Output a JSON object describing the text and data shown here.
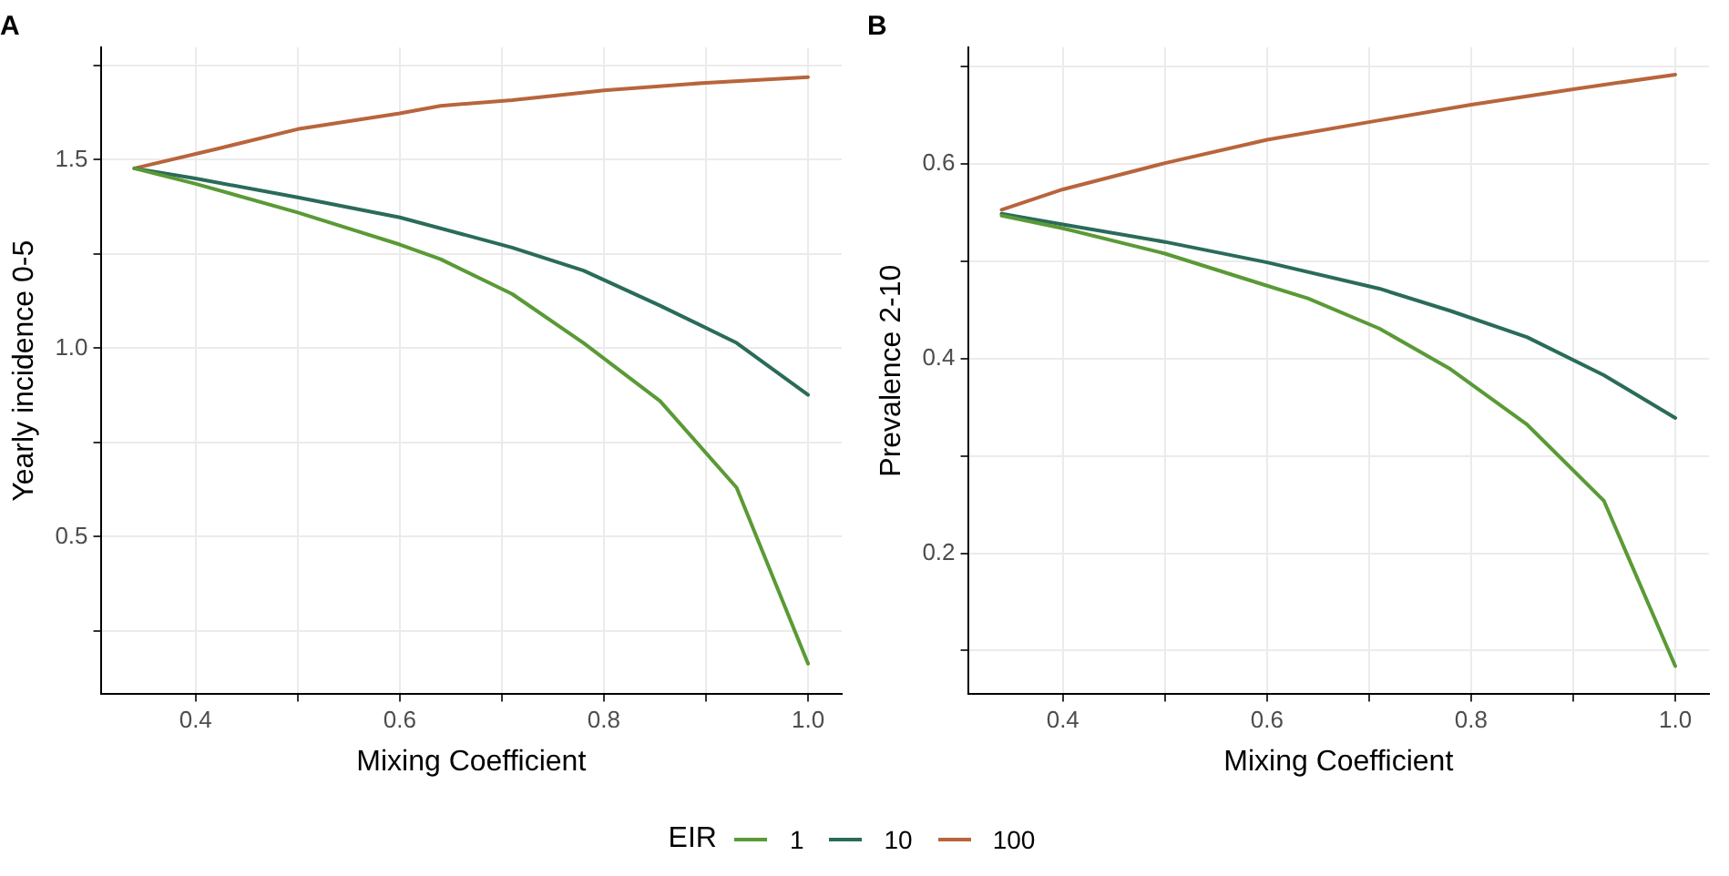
{
  "chart_data": [
    {
      "type": "line",
      "title": "A",
      "xlabel": "Mixing Coefficient",
      "ylabel": "Yearly incidence 0-5",
      "legend_title": "EIR",
      "legend": "bottom",
      "grid": true,
      "marker": "none",
      "line_style": "solid",
      "xlim": [
        0.307,
        1.033
      ],
      "xticks": [
        0.4,
        {
          "value": 0.5,
          "label": null
        },
        0.6,
        {
          "value": 0.7,
          "label": null
        },
        0.8,
        {
          "value": 0.9,
          "label": null
        },
        {
          "value": 1,
          "label": "1.0"
        }
      ],
      "ylim": [
        0.082,
        1.798
      ],
      "yticks": [
        {
          "value": 0.25,
          "label": null
        },
        0.5,
        {
          "value": 0.75,
          "label": null
        },
        {
          "value": 1,
          "label": "1.0"
        },
        {
          "value": 1.25,
          "label": null
        },
        1.5,
        {
          "value": 1.75,
          "label": null
        }
      ],
      "series": [
        {
          "name": "1",
          "color": "#5a9a36",
          "x": [
            0.34,
            0.4,
            0.5,
            0.6,
            0.64,
            0.71,
            0.78,
            0.855,
            0.93,
            1.0
          ],
          "values": [
            1.477,
            1.436,
            1.36,
            1.275,
            1.236,
            1.144,
            1.014,
            0.86,
            0.63,
            0.163
          ]
        },
        {
          "name": "10",
          "color": "#2a6b5a",
          "x": [
            0.34,
            0.4,
            0.5,
            0.6,
            0.71,
            0.78,
            0.855,
            0.93,
            1.0
          ],
          "values": [
            1.477,
            1.45,
            1.4,
            1.347,
            1.267,
            1.206,
            1.113,
            1.014,
            0.876
          ]
        },
        {
          "name": "100",
          "color": "#b8653c",
          "x": [
            0.34,
            0.42,
            0.5,
            0.6,
            0.64,
            0.71,
            0.8,
            0.9,
            1.0
          ],
          "values": [
            1.477,
            1.528,
            1.581,
            1.623,
            1.643,
            1.658,
            1.684,
            1.704,
            1.719
          ]
        }
      ]
    },
    {
      "type": "line",
      "title": "B",
      "xlabel": "Mixing Coefficient",
      "ylabel": "Prevalence 2-10",
      "grid": true,
      "marker": "none",
      "line_style": "solid",
      "xlim": [
        0.307,
        1.033
      ],
      "xticks": [
        0.4,
        {
          "value": 0.5,
          "label": null
        },
        0.6,
        {
          "value": 0.7,
          "label": null
        },
        0.8,
        {
          "value": 0.9,
          "label": null
        },
        {
          "value": 1,
          "label": "1.0"
        }
      ],
      "ylim": [
        0.055,
        0.72
      ],
      "yticks": [
        {
          "value": 0.1,
          "label": null
        },
        0.2,
        {
          "value": 0.3,
          "label": null
        },
        0.4,
        {
          "value": 0.5,
          "label": null
        },
        0.6,
        {
          "value": 0.7,
          "label": null
        }
      ],
      "series": [
        {
          "name": "1",
          "color": "#5a9a36",
          "x": [
            0.34,
            0.4,
            0.5,
            0.6,
            0.64,
            0.71,
            0.78,
            0.855,
            0.93,
            1.0
          ],
          "values": [
            0.547,
            0.534,
            0.508,
            0.475,
            0.462,
            0.431,
            0.389,
            0.332,
            0.254,
            0.084
          ]
        },
        {
          "name": "10",
          "color": "#2a6b5a",
          "x": [
            0.34,
            0.4,
            0.5,
            0.6,
            0.71,
            0.78,
            0.855,
            0.93,
            1.0
          ],
          "values": [
            0.549,
            0.538,
            0.52,
            0.499,
            0.472,
            0.449,
            0.422,
            0.383,
            0.339
          ]
        },
        {
          "name": "100",
          "color": "#b8653c",
          "x": [
            0.34,
            0.4,
            0.5,
            0.6,
            0.71,
            0.8,
            0.9,
            1.0
          ],
          "values": [
            0.553,
            0.574,
            0.601,
            0.625,
            0.645,
            0.661,
            0.677,
            0.692
          ]
        }
      ]
    }
  ]
}
